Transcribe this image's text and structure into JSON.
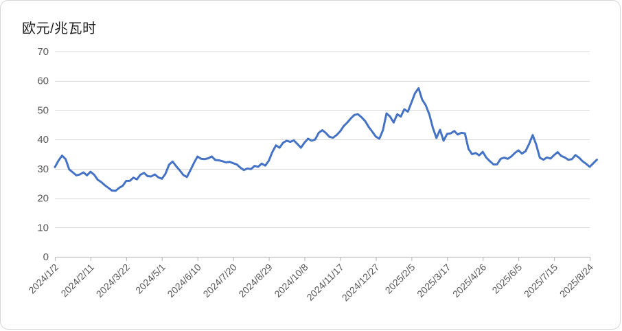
{
  "chart_data": {
    "type": "line",
    "title": "欧元/兆瓦时",
    "x_start": "2024/1/2",
    "x_end_label": "2025/8/24",
    "x_tick_labels": [
      "2024/1/2",
      "2024/2/11",
      "2024/3/22",
      "2024/5/1",
      "2024/6/10",
      "2024/7/20",
      "2024/8/29",
      "2024/10/8",
      "2024/11/17",
      "2024/12/27",
      "2025/2/5",
      "2025/3/17",
      "2025/4/26",
      "2025/6/5",
      "2025/7/15",
      "2025/8/24"
    ],
    "x_tick_interval_days": 40,
    "point_interval_days": 4,
    "y_ticks": [
      0,
      10,
      20,
      30,
      40,
      50,
      60,
      70
    ],
    "ylim": [
      0,
      70
    ],
    "grid": true,
    "legend": "none",
    "colors": {
      "line": "#4472C4",
      "grid": "#D9D9D9",
      "axis": "#BFBFBF",
      "tick_label": "#595959",
      "title": "#1F1F1F"
    },
    "values": [
      30.6,
      32.8,
      34.5,
      33.3,
      29.8,
      28.8,
      27.8,
      28.1,
      28.8,
      27.8,
      29.0,
      28.0,
      26.3,
      25.5,
      24.4,
      23.5,
      22.6,
      22.5,
      23.5,
      24.2,
      25.9,
      25.9,
      27.0,
      26.4,
      28.0,
      28.6,
      27.5,
      27.4,
      28.1,
      27.1,
      26.6,
      28.3,
      31.4,
      32.5,
      30.9,
      29.5,
      27.9,
      27.2,
      29.5,
      32.0,
      34.2,
      33.4,
      33.3,
      33.6,
      34.2,
      33.0,
      32.9,
      32.6,
      32.2,
      32.4,
      31.9,
      31.5,
      30.4,
      29.6,
      30.1,
      29.9,
      31.0,
      30.7,
      31.8,
      31.1,
      32.8,
      35.8,
      38.0,
      37.2,
      38.9,
      39.6,
      39.2,
      39.7,
      38.5,
      37.2,
      38.9,
      40.3,
      39.6,
      40.0,
      42.3,
      43.2,
      42.2,
      40.9,
      40.6,
      41.5,
      42.8,
      44.6,
      45.8,
      47.2,
      48.4,
      48.6,
      47.6,
      46.3,
      44.3,
      42.7,
      41.0,
      40.3,
      43.2,
      48.9,
      47.8,
      45.8,
      48.6,
      47.8,
      50.3,
      49.5,
      52.6,
      55.8,
      57.5,
      53.6,
      51.7,
      48.6,
      44.0,
      40.5,
      43.3,
      39.6,
      41.9,
      42.1,
      42.9,
      41.7,
      42.3,
      42.1,
      36.8,
      35.0,
      35.4,
      34.6,
      35.8,
      33.8,
      32.6,
      31.5,
      31.5,
      33.4,
      33.8,
      33.4,
      34.2,
      35.4,
      36.3,
      35.2,
      36.0,
      38.5,
      41.5,
      38.2,
      33.8,
      33.1,
      33.9,
      33.5,
      34.7,
      35.7,
      34.4,
      33.9,
      33.1,
      33.3,
      34.7,
      33.8,
      32.6,
      31.7,
      30.7,
      31.9,
      33.1
    ]
  }
}
